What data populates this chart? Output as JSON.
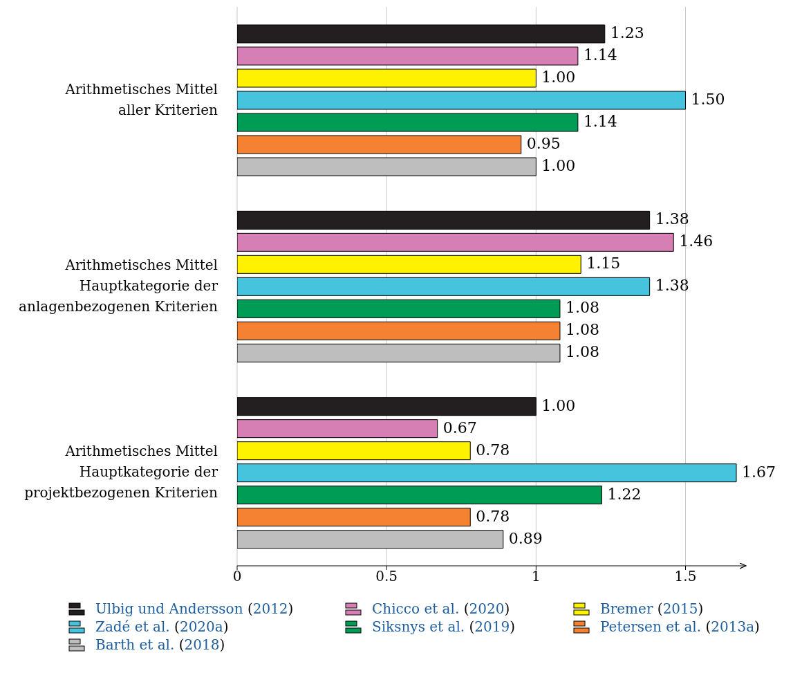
{
  "chart_data": {
    "type": "bar",
    "orientation": "horizontal",
    "categories": [
      "Arithmetisches Mittel aller Kriterien",
      "Arithmetisches Mittel Hauptkategorie der anlagenbezogenen Kriterien",
      "Arithmetisches Mittel Hauptkategorie der projektbezogenen Kriterien"
    ],
    "series": [
      {
        "name": "Ulbig und Andersson (2012)",
        "color": "#231f20",
        "values": [
          1.23,
          1.38,
          1.0
        ],
        "value_labels": [
          "1.23",
          "1.38",
          "1.00"
        ]
      },
      {
        "name": "Chicco et al. (2020)",
        "color": "#d67fb5",
        "values": [
          1.14,
          1.46,
          0.67
        ],
        "value_labels": [
          "1.14",
          "1.46",
          "0.67"
        ]
      },
      {
        "name": "Bremer (2015)",
        "color": "#fff200",
        "values": [
          1.0,
          1.15,
          0.78
        ],
        "value_labels": [
          "1.00",
          "1.15",
          "0.78"
        ]
      },
      {
        "name": "Zadé et al. (2020a)",
        "color": "#47c4dd",
        "values": [
          1.5,
          1.38,
          1.67
        ],
        "value_labels": [
          "1.50",
          "1.38",
          "1.67"
        ]
      },
      {
        "name": "Siksnys et al. (2019)",
        "color": "#009b55",
        "values": [
          1.14,
          1.08,
          1.22
        ],
        "value_labels": [
          "1.14",
          "1.08",
          "1.22"
        ]
      },
      {
        "name": "Petersen et al. (2013a)",
        "color": "#f58233",
        "values": [
          0.95,
          1.08,
          0.78
        ],
        "value_labels": [
          "0.95",
          "1.08",
          "0.78"
        ]
      },
      {
        "name": "Barth et al. (2018)",
        "color": "#bebebe",
        "values": [
          1.0,
          1.08,
          0.89
        ],
        "value_labels": [
          "1.00",
          "1.08",
          "0.89"
        ]
      }
    ],
    "xlim": [
      0,
      1.7
    ],
    "xticks": [
      0,
      0.5,
      1,
      1.5
    ],
    "grid": "x",
    "legend": "bottom"
  }
}
